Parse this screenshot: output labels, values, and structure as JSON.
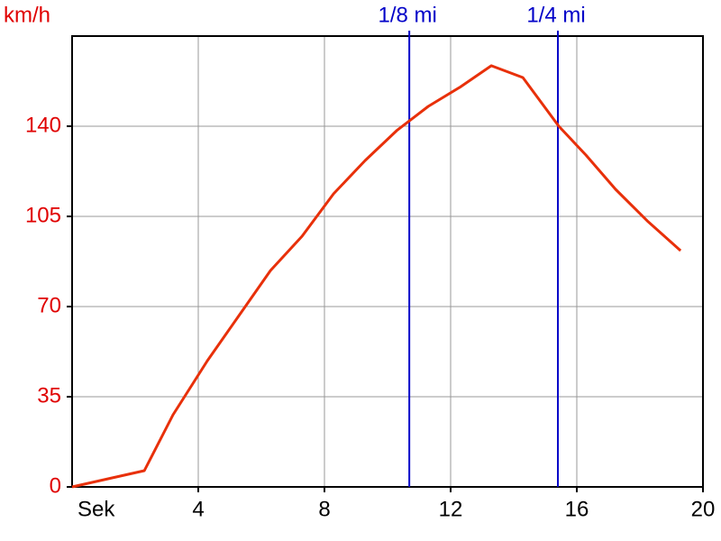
{
  "chart_data": {
    "type": "line",
    "y_label": "km/h",
    "x_label": "Sek",
    "x": [
      0,
      2.29,
      3.2,
      4.29,
      5.29,
      6.29,
      7.29,
      8.29,
      9.29,
      10.29,
      11.29,
      12.29,
      13.29,
      14.29,
      15.43,
      16.29,
      17.23,
      18.23,
      19.29
    ],
    "values": [
      0,
      6.3,
      28,
      49,
      66.5,
      84,
      97.3,
      113.8,
      126.7,
      138.3,
      147.7,
      155.1,
      163.5,
      158.9,
      140,
      128.8,
      115.5,
      103.3,
      91.7
    ],
    "color": "#e8300a",
    "xlim": [
      0,
      20
    ],
    "xticks": [
      4,
      8,
      12,
      16,
      20
    ],
    "ylim": [
      0,
      175
    ],
    "yticks": [
      0,
      35,
      70,
      105,
      140
    ],
    "grid": true,
    "markers": [
      {
        "label": "1/8 mi",
        "x": 10.69,
        "color": "#0000c8"
      },
      {
        "label": "1/4 mi",
        "x": 15.4,
        "color": "#0000c8"
      }
    ]
  }
}
